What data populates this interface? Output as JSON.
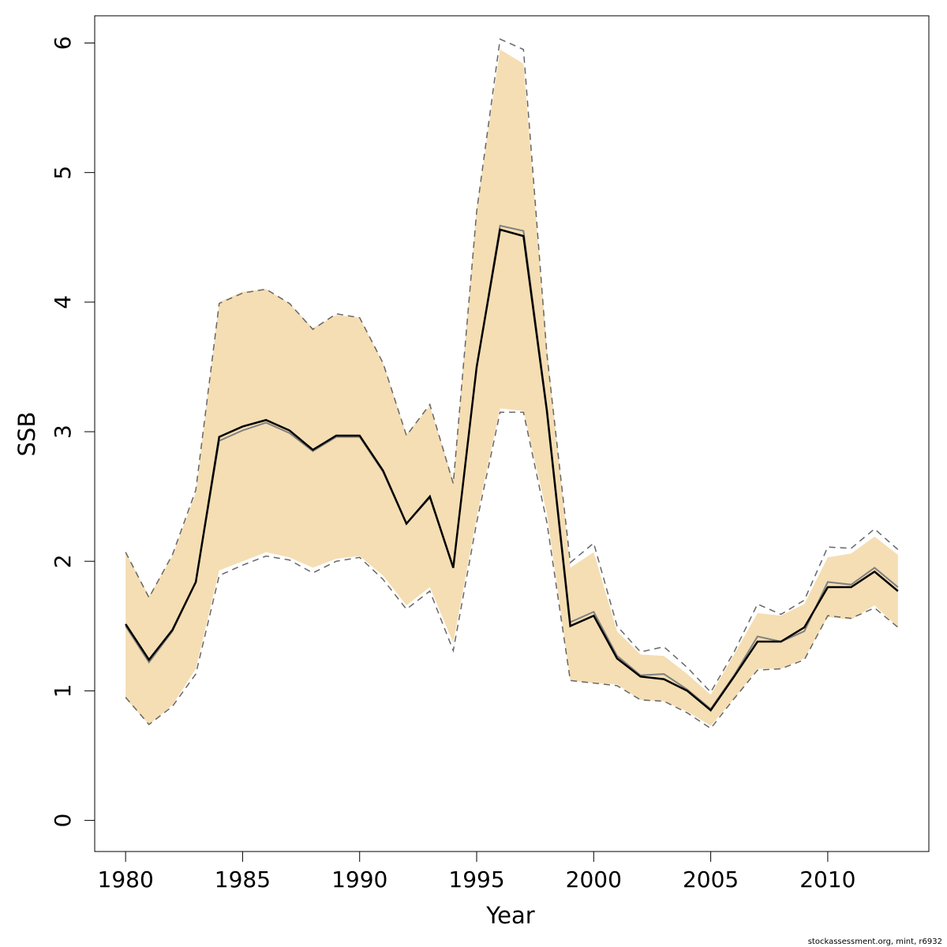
{
  "chart_data": {
    "type": "line",
    "xlabel": "Year",
    "ylabel": "SSB",
    "footnote": "stockassessment.org, mint, r6932",
    "x": [
      1980,
      1981,
      1982,
      1983,
      1984,
      1985,
      1986,
      1987,
      1988,
      1989,
      1990,
      1991,
      1992,
      1993,
      1994,
      1995,
      1996,
      1997,
      1998,
      1999,
      2000,
      2001,
      2002,
      2003,
      2004,
      2005,
      2006,
      2007,
      2008,
      2009,
      2010,
      2011,
      2012,
      2013
    ],
    "band": {
      "color": "#f5deb3",
      "upper": [
        2.07,
        1.73,
        2.04,
        2.53,
        4.0,
        4.08,
        4.1,
        3.99,
        3.8,
        3.9,
        3.88,
        3.53,
        2.98,
        3.2,
        2.62,
        4.72,
        5.95,
        5.84,
        3.65,
        1.95,
        2.07,
        1.46,
        1.28,
        1.27,
        1.13,
        0.97,
        1.28,
        1.6,
        1.58,
        1.67,
        2.03,
        2.06,
        2.19,
        2.05
      ],
      "lower": [
        0.94,
        0.74,
        0.89,
        1.17,
        1.93,
        2.0,
        2.07,
        2.03,
        1.95,
        2.02,
        2.04,
        1.89,
        1.66,
        1.8,
        1.37,
        2.34,
        3.18,
        3.16,
        2.37,
        1.08,
        1.06,
        1.05,
        0.93,
        0.92,
        0.84,
        0.73,
        0.94,
        1.17,
        1.17,
        1.25,
        1.57,
        1.55,
        1.66,
        1.49
      ]
    },
    "series": [
      {
        "color": "#666666",
        "linestyle": "dashed",
        "width": 1.5,
        "values": [
          2.07,
          1.72,
          2.05,
          2.55,
          3.99,
          4.07,
          4.1,
          3.99,
          3.79,
          3.91,
          3.88,
          3.53,
          2.97,
          3.21,
          2.6,
          4.7,
          6.03,
          5.95,
          3.6,
          1.99,
          2.14,
          1.5,
          1.3,
          1.34,
          1.18,
          0.99,
          1.3,
          1.67,
          1.59,
          1.7,
          2.11,
          2.1,
          2.25,
          2.09
        ]
      },
      {
        "color": "#666666",
        "linestyle": "dashed",
        "width": 1.5,
        "values": [
          0.95,
          0.74,
          0.88,
          1.13,
          1.89,
          1.97,
          2.04,
          2.01,
          1.91,
          2.0,
          2.03,
          1.86,
          1.63,
          1.77,
          1.31,
          2.3,
          3.15,
          3.15,
          2.3,
          1.08,
          1.06,
          1.04,
          0.93,
          0.92,
          0.83,
          0.71,
          0.94,
          1.16,
          1.17,
          1.24,
          1.58,
          1.56,
          1.64,
          1.49
        ]
      },
      {
        "color": "#808080",
        "linestyle": "solid",
        "width": 2,
        "values": [
          1.5,
          1.22,
          1.46,
          1.84,
          2.93,
          3.01,
          3.07,
          2.99,
          2.85,
          2.96,
          2.96,
          2.69,
          2.29,
          2.49,
          1.95,
          3.5,
          4.59,
          4.55,
          3.18,
          1.53,
          1.61,
          1.27,
          1.12,
          1.13,
          1.01,
          0.86,
          1.12,
          1.42,
          1.38,
          1.46,
          1.84,
          1.82,
          1.95,
          1.8
        ]
      },
      {
        "color": "#000000",
        "linestyle": "solid",
        "width": 2.5,
        "values": [
          1.515,
          1.24,
          1.47,
          1.84,
          2.96,
          3.04,
          3.09,
          3.01,
          2.86,
          2.97,
          2.97,
          2.7,
          2.29,
          2.5,
          1.95,
          3.5,
          4.56,
          4.51,
          3.16,
          1.5,
          1.58,
          1.25,
          1.11,
          1.09,
          1.0,
          0.85,
          1.11,
          1.38,
          1.38,
          1.49,
          1.8,
          1.8,
          1.92,
          1.77
        ]
      }
    ],
    "xlim": [
      1978.68,
      2014.32
    ],
    "ylim": [
      -0.24,
      6.21
    ],
    "xticks": [
      1980,
      1985,
      1990,
      1995,
      2000,
      2005,
      2010
    ],
    "yticks": [
      0,
      1,
      2,
      3,
      4,
      5,
      6
    ]
  }
}
